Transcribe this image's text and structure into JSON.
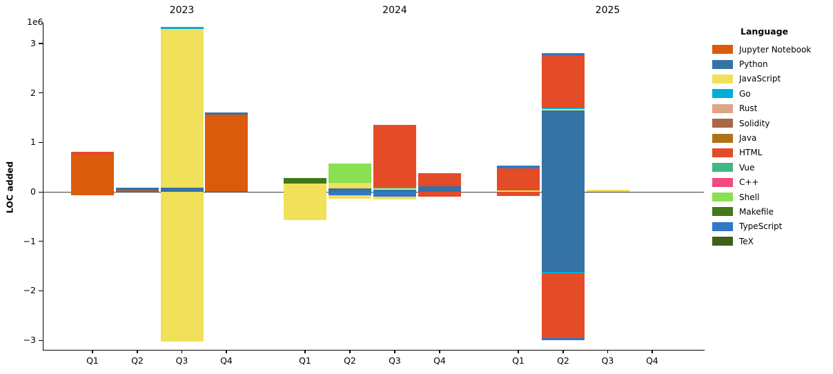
{
  "chart_data": {
    "type": "bar",
    "stacked": true,
    "value_unit": "1e6 LOC",
    "ylabel": "LOC added",
    "y_offset_text": "1e6",
    "yticks": [
      -3,
      -2,
      -1,
      0,
      1,
      2,
      3
    ],
    "ylim": [
      -3.19,
      3.42
    ],
    "grid": false,
    "legend_position": "right",
    "quarter_labels": [
      "Q1",
      "Q2",
      "Q3",
      "Q4"
    ],
    "groups": [
      {
        "year": "2023",
        "bars": [
          {
            "quarter": "Q1",
            "pos": [
              [
                "Jupyter Notebook",
                0.74
              ],
              [
                "HTML",
                0.07
              ]
            ],
            "neg": [
              [
                "Jupyter Notebook",
                0.07
              ]
            ]
          },
          {
            "quarter": "Q2",
            "pos": [
              [
                "Jupyter Notebook",
                0.032
              ],
              [
                "Python",
                0.055
              ]
            ],
            "neg": []
          },
          {
            "quarter": "Q3",
            "pos": [
              [
                "Python",
                0.09
              ],
              [
                "JavaScript",
                3.2
              ],
              [
                "Go",
                0.04
              ]
            ],
            "neg": [
              [
                "JavaScript",
                3.03
              ]
            ]
          },
          {
            "quarter": "Q4",
            "pos": [
              [
                "Jupyter Notebook",
                1.56
              ],
              [
                "Python",
                0.045
              ]
            ],
            "neg": []
          }
        ]
      },
      {
        "year": "2024",
        "bars": [
          {
            "quarter": "Q1",
            "pos": [
              [
                "JavaScript",
                0.165
              ],
              [
                "Makefile",
                0.115
              ]
            ],
            "neg": [
              [
                "JavaScript",
                0.57
              ]
            ]
          },
          {
            "quarter": "Q2",
            "pos": [
              [
                "Python",
                0.075
              ],
              [
                "JavaScript",
                0.105
              ],
              [
                "Shell",
                0.39
              ]
            ],
            "neg": [
              [
                "TypeScript",
                0.075
              ],
              [
                "JavaScript",
                0.06
              ]
            ]
          },
          {
            "quarter": "Q3",
            "pos": [
              [
                "Python",
                0.042
              ],
              [
                "JavaScript",
                0.021
              ],
              [
                "Go",
                0.028
              ],
              [
                "HTML",
                1.26
              ]
            ],
            "neg": [
              [
                "TypeScript",
                0.1
              ],
              [
                "JavaScript",
                0.05
              ]
            ]
          },
          {
            "quarter": "Q4",
            "pos": [
              [
                "Python",
                0.11
              ],
              [
                "HTML",
                0.27
              ]
            ],
            "neg": [
              [
                "HTML",
                0.1
              ]
            ]
          }
        ]
      },
      {
        "year": "2025",
        "bars": [
          {
            "quarter": "Q1",
            "pos": [
              [
                "JavaScript",
                0.032
              ],
              [
                "HTML",
                0.44
              ],
              [
                "TypeScript",
                0.06
              ]
            ],
            "neg": [
              [
                "HTML",
                0.084
              ]
            ]
          },
          {
            "quarter": "Q2",
            "pos": [
              [
                "Python",
                1.64
              ],
              [
                "JavaScript",
                0.03
              ],
              [
                "Go",
                0.03
              ],
              [
                "HTML",
                1.05
              ],
              [
                "TypeScript",
                0.06
              ]
            ],
            "neg": [
              [
                "Python",
                1.62
              ],
              [
                "Go",
                0.03
              ],
              [
                "HTML",
                1.3
              ],
              [
                "TypeScript",
                0.05
              ]
            ]
          },
          {
            "quarter": "Q3",
            "pos": [
              [
                "JavaScript",
                0.045
              ]
            ],
            "neg": []
          },
          {
            "quarter": "Q4",
            "pos": [],
            "neg": []
          }
        ]
      }
    ],
    "legend": {
      "title": "Language",
      "items": [
        {
          "label": "Jupyter Notebook",
          "color": "#DA5B0B"
        },
        {
          "label": "Python",
          "color": "#3572A5"
        },
        {
          "label": "JavaScript",
          "color": "#F1E05A"
        },
        {
          "label": "Go",
          "color": "#00ADD8"
        },
        {
          "label": "Rust",
          "color": "#DEA584"
        },
        {
          "label": "Solidity",
          "color": "#AA6746"
        },
        {
          "label": "Java",
          "color": "#B07219"
        },
        {
          "label": "HTML",
          "color": "#E34C26"
        },
        {
          "label": "Vue",
          "color": "#41B883"
        },
        {
          "label": "C++",
          "color": "#F34B7D"
        },
        {
          "label": "Shell",
          "color": "#89E051"
        },
        {
          "label": "Makefile",
          "color": "#427819"
        },
        {
          "label": "TypeScript",
          "color": "#3178C6"
        },
        {
          "label": "TeX",
          "color": "#3D6117"
        }
      ]
    }
  }
}
